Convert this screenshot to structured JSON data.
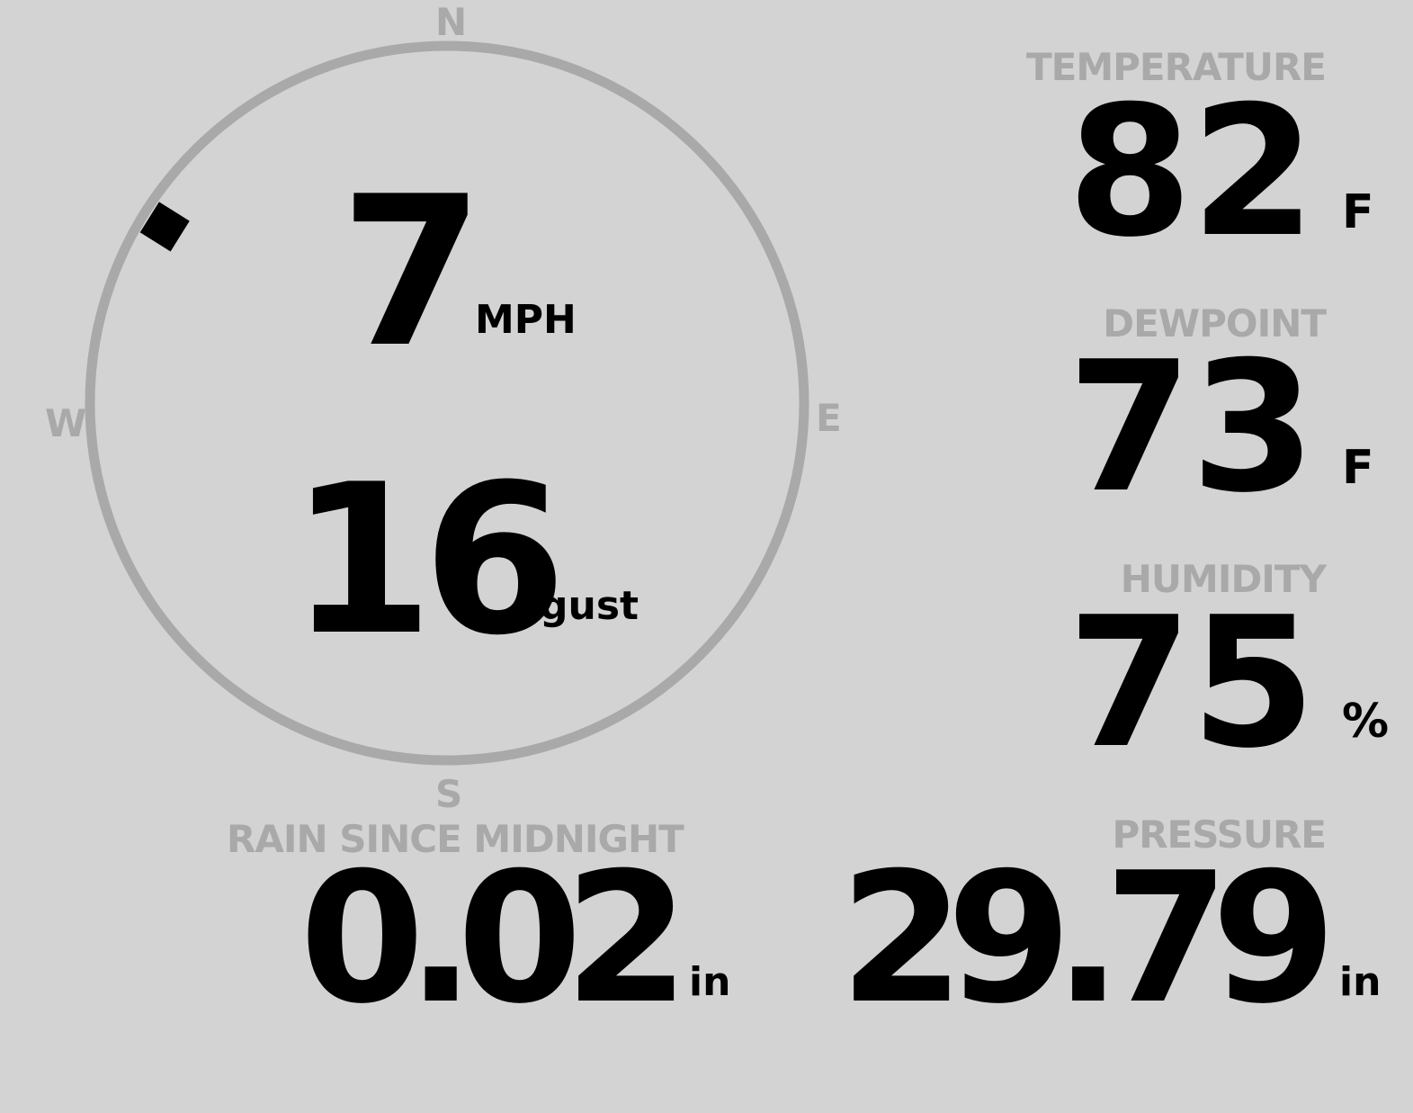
{
  "wind": {
    "speed": "7",
    "speed_unit": "MPH",
    "gust": "16",
    "gust_label": "gust",
    "direction_degrees": 302,
    "cardinals": {
      "n": "N",
      "e": "E",
      "s": "S",
      "w": "W"
    }
  },
  "temperature": {
    "label": "TEMPERATURE",
    "value": "82",
    "unit": "F"
  },
  "dewpoint": {
    "label": "DEWPOINT",
    "value": "73",
    "unit": "F"
  },
  "humidity": {
    "label": "HUMIDITY",
    "value": "75",
    "unit": "%"
  },
  "rain": {
    "label": "RAIN SINCE MIDNIGHT",
    "value": "0.02",
    "unit": "in"
  },
  "pressure": {
    "label": "PRESSURE",
    "value": "29.79",
    "unit": "in"
  },
  "colors": {
    "background": "#d3d3d3",
    "label": "#a9a9a9",
    "value": "#000000"
  }
}
